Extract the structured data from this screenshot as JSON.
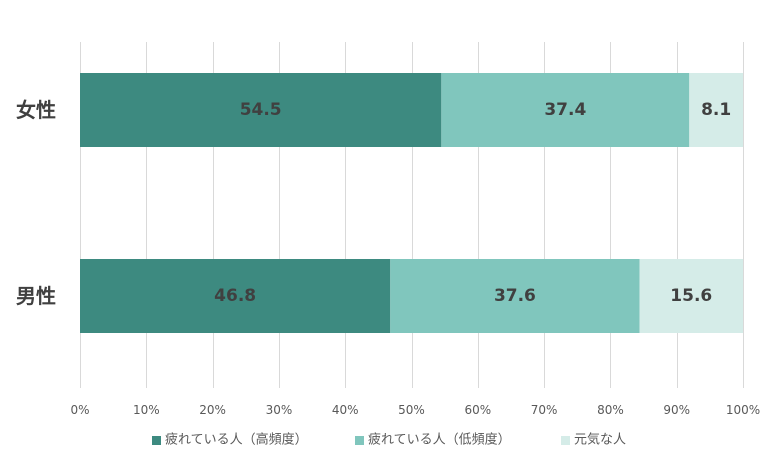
{
  "chart_data": {
    "type": "bar",
    "orientation": "horizontal",
    "stacked": true,
    "percent_stacked": true,
    "categories": [
      "女性",
      "男性"
    ],
    "series": [
      {
        "name": "疲れている人（高頻度）",
        "values": [
          54.5,
          46.8
        ],
        "color": "#3d8a80"
      },
      {
        "name": "疲れている人（低頻度）",
        "values": [
          37.4,
          37.6
        ],
        "color": "#80c6bd"
      },
      {
        "name": "元気な人",
        "values": [
          8.1,
          15.6
        ],
        "color": "#d5ece8"
      }
    ],
    "xlim": [
      0,
      100
    ],
    "xticks": [
      "0%",
      "10%",
      "20%",
      "30%",
      "40%",
      "50%",
      "60%",
      "70%",
      "80%",
      "90%",
      "100%"
    ],
    "grid": true,
    "legend_position": "bottom",
    "data_labels": true
  }
}
